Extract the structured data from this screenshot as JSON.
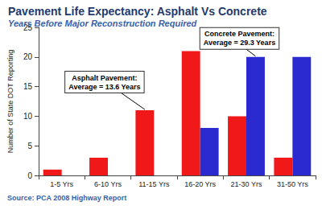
{
  "chart_data": {
    "type": "bar",
    "title": "Pavement Life Expectancy: Asphalt Vs Concrete",
    "subtitle": "Years Before Major Reconstruction Required",
    "y_label": "Number of State DOT Reporting",
    "source": "Source: PCA 2008 Highway Report",
    "categories": [
      "1-5 Yrs",
      "6-10 Yrs",
      "11-15 Yrs",
      "16-20 Yrs",
      "21-30 Yrs",
      "31-50 Yrs"
    ],
    "series": [
      {
        "color": "#f01818",
        "values": [
          1,
          3,
          11,
          21,
          10,
          3
        ]
      },
      {
        "color": "#2a2ad0",
        "values": [
          0,
          0,
          0,
          8,
          20,
          20
        ]
      }
    ],
    "annotations": [
      {
        "lines": [
          "Asphalt Pavement:",
          "Average = 13.6 Years"
        ]
      },
      {
        "lines": [
          "Concrete Pavement:",
          "Average = 29.3 Years"
        ]
      }
    ],
    "ylim": [
      0,
      25
    ],
    "yticks": [
      0,
      5,
      10,
      15,
      20,
      25
    ],
    "grid": false
  }
}
